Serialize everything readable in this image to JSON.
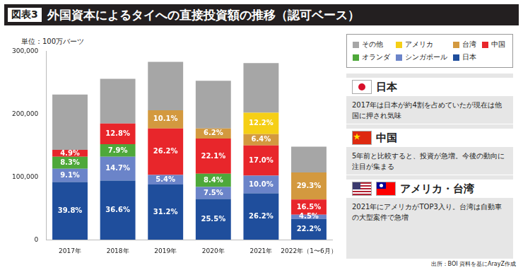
{
  "chart_data": {
    "type": "bar",
    "figure": "図表3",
    "title": "外国資本によるタイへの直接投資額の推移（認可ベース）",
    "y_label": "単位：100万バーツ",
    "source": "出所：BOI 資料を基にArayZ作成",
    "stacked": true,
    "grid": false,
    "categories": [
      "2017年",
      "2018年",
      "2019年",
      "2020年",
      "2021年",
      "2022年（1〜6月）"
    ],
    "ylim": [
      0,
      300000
    ],
    "yticks": [
      0,
      {
        "value": 100000,
        "label": "100,000"
      },
      {
        "value": 200000,
        "label": "200,000"
      },
      {
        "value": 300000,
        "label": "300,000"
      }
    ],
    "series": [
      {
        "name": "日本",
        "color": "#1f4e9c",
        "values": [
          92000,
          94000,
          88000,
          65000,
          74000,
          33000
        ],
        "share_labels": [
          "39.8%",
          "36.6%",
          "31.2%",
          "25.5%",
          "26.2%",
          "22.2%"
        ]
      },
      {
        "name": "シンガポール",
        "color": "#6b84c9",
        "values": [
          21000,
          38000,
          15000,
          19000,
          28000,
          7000
        ],
        "share_labels": [
          "9.1%",
          "14.7%",
          "5.4%",
          "7.5%",
          "10.0%",
          "4.5%"
        ]
      },
      {
        "name": "オランダ",
        "color": "#4ea83a",
        "values": [
          19000,
          20000,
          null,
          21000,
          null,
          null
        ],
        "share_labels": [
          "8.3%",
          "7.9%",
          null,
          "8.4%",
          null,
          null
        ]
      },
      {
        "name": "中国",
        "color": "#e8262b",
        "values": [
          11000,
          33000,
          74000,
          56000,
          48000,
          24000
        ],
        "share_labels": [
          "4.9%",
          "12.8%",
          "26.2%",
          "22.1%",
          "17.0%",
          "16.5%"
        ]
      },
      {
        "name": "台湾",
        "color": "#d3993f",
        "values": [
          null,
          null,
          29000,
          16000,
          18000,
          43000
        ],
        "share_labels": [
          null,
          null,
          "10.1%",
          "6.2%",
          "6.4%",
          "29.3%"
        ]
      },
      {
        "name": "アメリカ",
        "color": "#f5cf16",
        "values": [
          null,
          null,
          null,
          null,
          34000,
          null
        ],
        "share_labels": [
          null,
          null,
          null,
          null,
          "12.2%",
          null
        ]
      },
      {
        "name": "その他",
        "color": "#a6a6a6",
        "values": [
          88000,
          71000,
          77000,
          76000,
          79000,
          41000
        ],
        "share_labels": [
          null,
          null,
          null,
          null,
          null,
          null
        ]
      }
    ],
    "annotations": [
      {
        "title": "日本",
        "text": "2017年は日本が約4割を占めていたが現在は他国に押され気味"
      },
      {
        "title": "中国",
        "text": "5年前と比較すると、投資が急増。今後の動向に注目が集まる"
      },
      {
        "title": "アメリカ・台湾",
        "text": "2021年にアメリカがTOP3入り。台湾は自動車の大型案件で急増"
      }
    ]
  }
}
